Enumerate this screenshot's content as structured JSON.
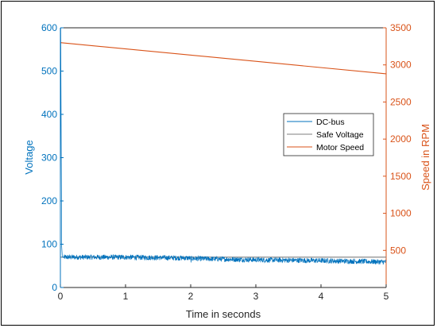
{
  "chart_data": {
    "type": "line",
    "xlabel": "Time in seconds",
    "ylabel_left": "Voltage",
    "ylabel_right": "Speed in RPM",
    "xlim": [
      0,
      5
    ],
    "ylim_left": [
      0,
      600
    ],
    "ylim_right": [
      0,
      3500
    ],
    "x_ticks": [
      "0",
      "1",
      "2",
      "3",
      "4",
      "5"
    ],
    "y_left_ticks": [
      "0",
      "100",
      "200",
      "300",
      "400",
      "500",
      "600"
    ],
    "y_right_ticks": [
      "500",
      "1000",
      "1500",
      "2000",
      "2500",
      "3000",
      "3500"
    ],
    "y_right_tick_values": [
      500,
      1000,
      1500,
      2000,
      2500,
      3000,
      3500
    ],
    "grid": false,
    "legend_position": "center-right",
    "series": [
      {
        "name": "DC-bus",
        "axis": "left",
        "color": "#0072BD",
        "style": "noisy",
        "x": [
          0,
          0.005,
          0.02,
          0.03,
          0.05,
          1,
          1.99,
          2.0,
          2.01,
          3,
          4,
          5
        ],
        "y": [
          0,
          600,
          95,
          70,
          70,
          70,
          68,
          60,
          67,
          64,
          62,
          59
        ],
        "noise_amplitude": 6
      },
      {
        "name": "Safe Voltage",
        "axis": "left",
        "color": "#7f7f7f",
        "x": [
          0,
          5
        ],
        "y": [
          70,
          70
        ]
      },
      {
        "name": "Motor Speed",
        "axis": "right",
        "color": "#D95319",
        "x": [
          0,
          5
        ],
        "y": [
          3300,
          2880
        ]
      }
    ]
  },
  "colors": {
    "left_axis": "#0072BD",
    "right_axis": "#D95319",
    "x_axis": "#262626"
  }
}
